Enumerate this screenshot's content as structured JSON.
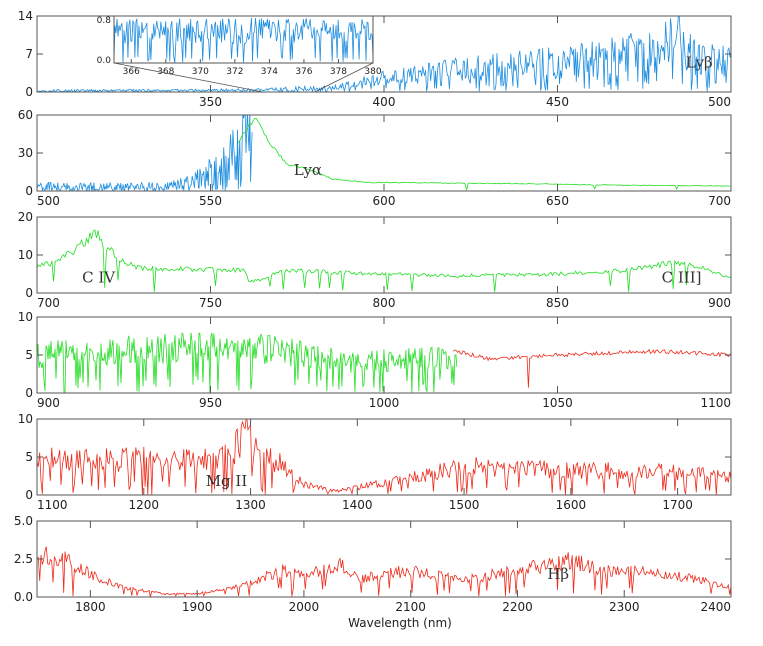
{
  "chart_data": {
    "type": "line",
    "title": "",
    "xlabel": "Wavelength (nm)",
    "ylabel": "",
    "colors": {
      "blue": "#1f8ee0",
      "green": "#22dd22",
      "red": "#ee2a1a",
      "axis": "#555555"
    },
    "panels": [
      {
        "xlim": [
          300,
          500
        ],
        "ylim": [
          0,
          14
        ],
        "yticks": [
          "0",
          "7",
          "14"
        ],
        "xticks": [
          "350",
          "400",
          "450",
          "500"
        ],
        "annotations": [
          {
            "text": "Lyβ",
            "x": 487,
            "y": 4.5
          }
        ],
        "series": [
          {
            "color": "blue",
            "x0": 300,
            "x1": 500,
            "profile": [
              [
                300,
                0.3
              ],
              [
                320,
                0.3
              ],
              [
                360,
                0.4
              ],
              [
                385,
                0.8
              ],
              [
                400,
                2.5
              ],
              [
                420,
                4
              ],
              [
                440,
                5
              ],
              [
                460,
                6
              ],
              [
                480,
                8
              ],
              [
                483,
                11
              ],
              [
                490,
                6
              ],
              [
                500,
                6
              ]
            ],
            "noise": 0.55,
            "n": 700
          }
        ],
        "inset": {
          "xlim": [
            365,
            380
          ],
          "ylim": [
            0,
            0.8
          ],
          "yticks": [
            "0.0",
            "0.8"
          ],
          "xticks": [
            "366",
            "368",
            "370",
            "372",
            "374",
            "376",
            "378",
            "380"
          ],
          "series": {
            "color": "blue",
            "level": 0.55,
            "noise": 0.4,
            "n": 260
          }
        }
      },
      {
        "xlim": [
          500,
          700
        ],
        "ylim": [
          0,
          62
        ],
        "yticks": [
          "0",
          "30",
          "60"
        ],
        "xticks": [
          "500",
          "550",
          "600",
          "650",
          "700"
        ],
        "annotations": [
          {
            "text": "Lyα",
            "x": 574,
            "y": 13
          }
        ],
        "series": [
          {
            "color": "blue",
            "x0": 500,
            "x1": 562,
            "profile": [
              [
                500,
                4
              ],
              [
                520,
                4
              ],
              [
                535,
                4
              ],
              [
                545,
                8
              ],
              [
                552,
                20
              ],
              [
                558,
                35
              ],
              [
                562,
                45
              ]
            ],
            "noise": 0.75,
            "n": 280
          },
          {
            "color": "green",
            "x0": 558,
            "x1": 700,
            "profile": [
              [
                558,
                40
              ],
              [
                560,
                50
              ],
              [
                563,
                58
              ],
              [
                567,
                40
              ],
              [
                572,
                22
              ],
              [
                580,
                16
              ],
              [
                585,
                10
              ],
              [
                595,
                7
              ],
              [
                640,
                6
              ],
              [
                660,
                5
              ],
              [
                700,
                4
              ]
            ],
            "noise": 0.05,
            "n": 300
          }
        ]
      },
      {
        "xlim": [
          700,
          900
        ],
        "ylim": [
          0,
          20
        ],
        "yticks": [
          "0",
          "10",
          "20"
        ],
        "xticks": [
          "700",
          "750",
          "800",
          "850",
          "900"
        ],
        "annotations": [
          {
            "text": "C IV",
            "x": 713,
            "y": 2.7
          },
          {
            "text": "C III]",
            "x": 880,
            "y": 2.7
          }
        ],
        "series": [
          {
            "color": "green",
            "x0": 700,
            "x1": 900,
            "profile": [
              [
                700,
                7
              ],
              [
                705,
                8
              ],
              [
                712,
                12
              ],
              [
                717,
                16
              ],
              [
                720,
                12
              ],
              [
                725,
                8
              ],
              [
                730,
                6.5
              ],
              [
                760,
                6
              ],
              [
                761,
                3
              ],
              [
                765,
                3.5
              ],
              [
                770,
                6
              ],
              [
                800,
                5
              ],
              [
                820,
                4.5
              ],
              [
                850,
                5
              ],
              [
                870,
                6
              ],
              [
                883,
                8
              ],
              [
                890,
                7
              ],
              [
                900,
                4
              ]
            ],
            "noise": 0.1,
            "n": 420
          }
        ]
      },
      {
        "xlim": [
          900,
          1100
        ],
        "ylim": [
          0,
          10
        ],
        "yticks": [
          "0",
          "5",
          "10"
        ],
        "xticks": [
          "900",
          "950",
          "1000",
          "1050",
          "1100"
        ],
        "annotations": [],
        "series": [
          {
            "color": "green",
            "x0": 900,
            "x1": 1021,
            "profile": [
              [
                900,
                5
              ],
              [
                920,
                5.5
              ],
              [
                940,
                6
              ],
              [
                960,
                6
              ],
              [
                980,
                5
              ],
              [
                990,
                4
              ],
              [
                1000,
                4.3
              ],
              [
                1020,
                4.6
              ]
            ],
            "noise": 0.35,
            "n": 420
          },
          {
            "color": "red",
            "x0": 1020,
            "x1": 1100,
            "profile": [
              [
                1020,
                5.6
              ],
              [
                1030,
                4.5
              ],
              [
                1050,
                5
              ],
              [
                1080,
                5.5
              ],
              [
                1100,
                5
              ]
            ],
            "noise": 0.05,
            "n": 200
          }
        ]
      },
      {
        "xlim": [
          1100,
          1750
        ],
        "ylim": [
          0,
          10
        ],
        "yticks": [
          "0",
          "5",
          "10"
        ],
        "xticks": [
          "1100",
          "1200",
          "1300",
          "1400",
          "1500",
          "1600",
          "1700"
        ],
        "annotations": [
          {
            "text": "Mg II",
            "x": 1258,
            "y": 1.2
          }
        ],
        "series": [
          {
            "color": "red",
            "x0": 1100,
            "x1": 1750,
            "profile": [
              [
                1100,
                5
              ],
              [
                1150,
                4.5
              ],
              [
                1200,
                4.7
              ],
              [
                1260,
                4.5
              ],
              [
                1285,
                6
              ],
              [
                1295,
                9
              ],
              [
                1305,
                6
              ],
              [
                1330,
                4
              ],
              [
                1350,
                1.5
              ],
              [
                1380,
                0.5
              ],
              [
                1420,
                1.5
              ],
              [
                1460,
                2.5
              ],
              [
                1500,
                3.8
              ],
              [
                1550,
                3.5
              ],
              [
                1600,
                3.3
              ],
              [
                1700,
                3
              ],
              [
                1750,
                2.5
              ]
            ],
            "noise": 0.35,
            "n": 520
          }
        ]
      },
      {
        "xlim": [
          1750,
          2400
        ],
        "ylim": [
          0,
          5.0
        ],
        "yticks": [
          "0.0",
          "2.5",
          "5.0"
        ],
        "xticks": [
          "1800",
          "1900",
          "2000",
          "2100",
          "2200",
          "2300",
          "2400"
        ],
        "annotations": [
          {
            "text": "Hβ",
            "x": 2228,
            "y": 1.2
          }
        ],
        "series": [
          {
            "color": "red",
            "x0": 1750,
            "x1": 2400,
            "profile": [
              [
                1750,
                2.8
              ],
              [
                1780,
                2.4
              ],
              [
                1800,
                1.5
              ],
              [
                1830,
                0.6
              ],
              [
                1870,
                0.2
              ],
              [
                1900,
                0.2
              ],
              [
                1950,
                0.9
              ],
              [
                1980,
                1.8
              ],
              [
                2000,
                1.3
              ],
              [
                2030,
                2.2
              ],
              [
                2055,
                1.2
              ],
              [
                2080,
                1.6
              ],
              [
                2100,
                1.7
              ],
              [
                2150,
                1.1
              ],
              [
                2200,
                1.8
              ],
              [
                2250,
                2.4
              ],
              [
                2280,
                1.8
              ],
              [
                2300,
                1.7
              ],
              [
                2350,
                1.4
              ],
              [
                2400,
                0.7
              ]
            ],
            "noise": 0.25,
            "n": 520
          }
        ]
      }
    ]
  }
}
